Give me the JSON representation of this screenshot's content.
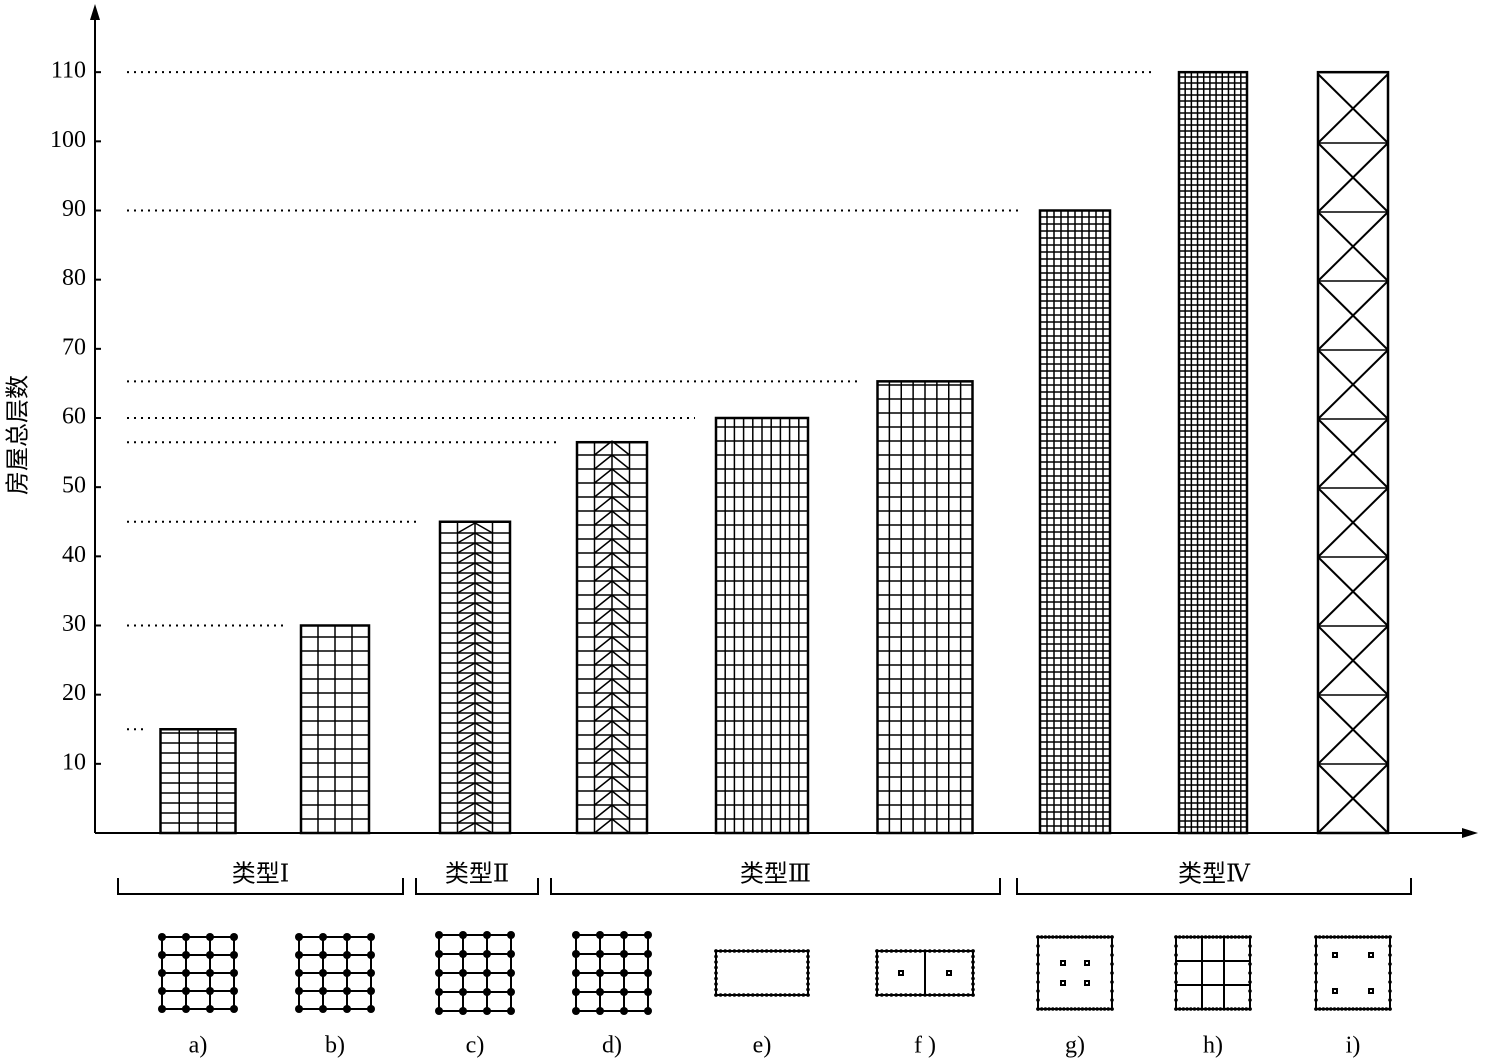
{
  "chart_data": {
    "type": "bar",
    "y_label": "房屋总层数",
    "categories": [
      "a)",
      "b)",
      "c)",
      "d)",
      "e)",
      "f )",
      "g)",
      "h)",
      "i)"
    ],
    "values": [
      15,
      30,
      45,
      56.5,
      60,
      65.3,
      90,
      110,
      110
    ],
    "color": "#000000",
    "group_labels": [
      "类型Ⅰ",
      "类型Ⅱ",
      "类型Ⅲ",
      "类型Ⅳ"
    ],
    "ylim": [
      0,
      120
    ],
    "yticks": [
      10,
      20,
      30,
      40,
      50,
      60,
      70,
      80,
      90,
      100,
      110
    ]
  }
}
